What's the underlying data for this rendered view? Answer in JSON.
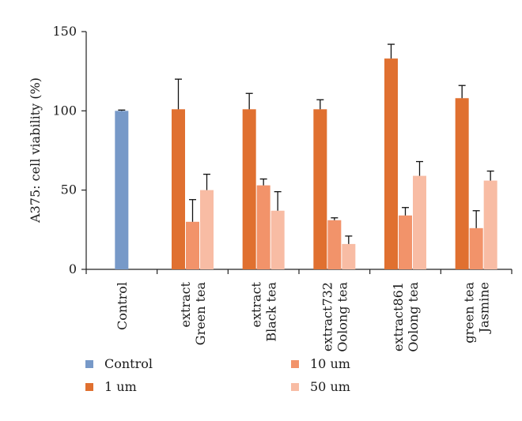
{
  "chart_data": {
    "type": "bar",
    "title": "",
    "xlabel": "",
    "ylabel": "A375: cell viability (%)",
    "ylim": [
      0,
      150
    ],
    "yticks": [
      0,
      50,
      100,
      150
    ],
    "grid": false,
    "legend_position": "bottom",
    "categories": [
      [
        "Control"
      ],
      [
        "Green tea",
        "extract"
      ],
      [
        "Black tea",
        "extract"
      ],
      [
        "Oolong tea",
        "extract732"
      ],
      [
        "Oolong tea",
        "extract861"
      ],
      [
        "Jasmine",
        "green tea"
      ]
    ],
    "series": [
      {
        "name": "Control",
        "color": "#7799c8",
        "values": [
          100,
          null,
          null,
          null,
          null,
          null
        ],
        "errors": [
          0.5,
          null,
          null,
          null,
          null,
          null
        ]
      },
      {
        "name": "1 um",
        "color": "#e07030",
        "values": [
          null,
          101,
          101,
          101,
          133,
          108
        ],
        "errors": [
          null,
          19,
          10,
          6,
          9,
          8
        ]
      },
      {
        "name": "10 um",
        "color": "#f2936a",
        "values": [
          null,
          30,
          53,
          31,
          34,
          26
        ],
        "errors": [
          null,
          14,
          4,
          1.5,
          5,
          11
        ]
      },
      {
        "name": "50 um",
        "color": "#f8bca4",
        "values": [
          null,
          50,
          37,
          16,
          59,
          56
        ],
        "errors": [
          null,
          10,
          12,
          5,
          9,
          6
        ]
      }
    ]
  }
}
